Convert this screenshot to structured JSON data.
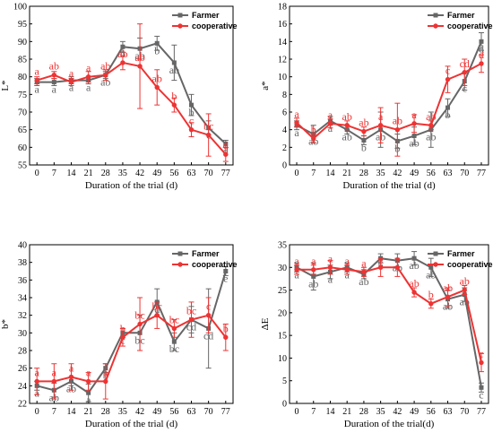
{
  "colors": {
    "farmer": "#666666",
    "cooperative": "#ee3333",
    "axis": "#000000"
  },
  "legend": {
    "series": [
      "Farmer",
      "cooperative"
    ]
  },
  "chart_data": [
    {
      "type": "line",
      "x": [
        0,
        7,
        14,
        21,
        28,
        35,
        42,
        49,
        56,
        63,
        70,
        77
      ],
      "xlabel": "Duration of the trial (d)",
      "ylabel": "L*",
      "ylim": [
        55,
        100
      ],
      "yticks": [
        55,
        60,
        65,
        70,
        75,
        80,
        85,
        90,
        95,
        100
      ],
      "series": [
        {
          "name": "Farmer",
          "values": [
            78.5,
            78.5,
            79,
            79,
            80.5,
            88.5,
            88,
            89.5,
            84,
            72,
            65.5,
            61
          ],
          "errors": [
            1,
            1,
            1,
            1,
            1,
            1.5,
            3,
            2,
            5,
            3,
            2,
            1
          ],
          "letters": [
            "a",
            "a",
            "a",
            "a",
            "ab",
            "b",
            "ab",
            "b",
            "ab",
            "b",
            "c",
            "d"
          ]
        },
        {
          "name": "cooperative",
          "values": [
            79,
            80.5,
            78.5,
            80,
            80.5,
            84,
            83,
            77,
            72,
            65,
            63.5,
            58
          ],
          "errors": [
            1,
            1,
            1,
            1.5,
            1.5,
            2,
            12,
            5,
            2,
            2,
            6,
            2
          ],
          "letters": [
            "a",
            "ab",
            "a",
            "a",
            "ab",
            "ab",
            "ab",
            "ab",
            "b",
            "c",
            "bc",
            "d"
          ]
        }
      ]
    },
    {
      "type": "line",
      "x": [
        0,
        7,
        14,
        21,
        28,
        35,
        42,
        49,
        56,
        63,
        70,
        77
      ],
      "xlabel": "Duration of the trial (d)",
      "ylabel": "a*",
      "ylim": [
        0,
        18
      ],
      "yticks": [
        0,
        2,
        4,
        6,
        8,
        10,
        12,
        14,
        16,
        18
      ],
      "series": [
        {
          "name": "Farmer",
          "values": [
            4.5,
            3.5,
            5,
            4,
            2.8,
            4,
            2.7,
            3.3,
            4,
            6.5,
            9.5,
            14
          ],
          "errors": [
            0.5,
            1,
            0.5,
            0.5,
            0.5,
            2,
            0.8,
            1,
            2,
            1,
            1,
            1
          ],
          "letters": [
            "a",
            "ab",
            "a",
            "ab",
            "b",
            "ab",
            "b",
            "ab",
            "ab",
            "b",
            "c",
            "d"
          ]
        },
        {
          "name": "cooperative",
          "values": [
            4.8,
            3,
            4.7,
            4.5,
            3.8,
            4.5,
            4,
            4.7,
            4.5,
            9.7,
            10.5,
            11.5
          ],
          "errors": [
            0.5,
            0.5,
            0.5,
            0.5,
            0.5,
            2,
            3,
            1,
            0.5,
            1.5,
            1.5,
            1
          ],
          "letters": [
            "a",
            "b",
            "a",
            "ab",
            "ab",
            "a",
            "ab",
            "a",
            "ab",
            "c",
            "cd",
            "d"
          ]
        }
      ]
    },
    {
      "type": "line",
      "x": [
        0,
        7,
        14,
        21,
        28,
        35,
        42,
        49,
        56,
        63,
        70,
        77
      ],
      "xlabel": "Duration of the trial (d)",
      "ylabel": "b*",
      "ylim": [
        22,
        40
      ],
      "yticks": [
        22,
        24,
        26,
        28,
        30,
        32,
        34,
        36,
        38,
        40
      ],
      "series": [
        {
          "name": "Farmer",
          "values": [
            24,
            23.5,
            24.5,
            23.2,
            26,
            30,
            30,
            33.5,
            29,
            31.5,
            30.5,
            37
          ],
          "errors": [
            0.5,
            0.8,
            0.5,
            1,
            0.5,
            0.5,
            2,
            1.5,
            1,
            1.5,
            4.5,
            0.5
          ],
          "letters": [
            "a",
            "ab",
            "ab",
            "a",
            "b",
            "c",
            "bc",
            "d",
            "bc",
            "cd",
            "cd",
            "e"
          ]
        },
        {
          "name": "cooperative",
          "values": [
            24.5,
            24.5,
            25,
            24.5,
            24.5,
            29.5,
            31,
            32,
            30.5,
            31.5,
            32,
            29.5
          ],
          "errors": [
            1.5,
            2,
            1.5,
            1,
            2,
            1,
            3,
            1.5,
            1,
            2,
            2,
            1.5
          ],
          "letters": [
            "a",
            "a",
            "a",
            "a",
            "a",
            "b",
            "bc",
            "bc",
            "bc",
            "bc",
            "c",
            "b"
          ]
        }
      ]
    },
    {
      "type": "line",
      "x": [
        0,
        7,
        14,
        21,
        28,
        35,
        42,
        49,
        56,
        63,
        70,
        77
      ],
      "xlabel": "Duration of the trial(d)",
      "ylabel": "ΔE",
      "ylim": [
        0,
        35
      ],
      "yticks": [
        0,
        5,
        10,
        15,
        20,
        25,
        30,
        35
      ],
      "series": [
        {
          "name": "Farmer",
          "values": [
            30,
            28,
            29,
            30,
            28.5,
            32,
            31.5,
            32,
            30,
            23,
            24,
            3.5
          ],
          "errors": [
            1,
            3,
            1.5,
            1,
            1,
            1,
            1.5,
            1.5,
            2,
            2,
            1.5,
            1
          ],
          "letters": [
            "a",
            "ab",
            "a",
            "a",
            "ab",
            "b",
            "ab",
            "ab",
            "ab",
            "ab",
            "ab",
            "c"
          ]
        },
        {
          "name": "cooperative",
          "values": [
            29.5,
            29.5,
            30,
            29.5,
            29,
            30,
            30,
            24.5,
            22,
            23.5,
            25,
            9
          ],
          "errors": [
            1,
            1,
            1.5,
            1,
            1,
            2,
            2,
            1,
            1,
            2,
            1,
            2
          ],
          "letters": [
            "a",
            "a",
            "a",
            "a",
            "a",
            "a",
            "a",
            "ab",
            "b",
            "ab",
            "ab",
            "c"
          ]
        }
      ]
    }
  ]
}
